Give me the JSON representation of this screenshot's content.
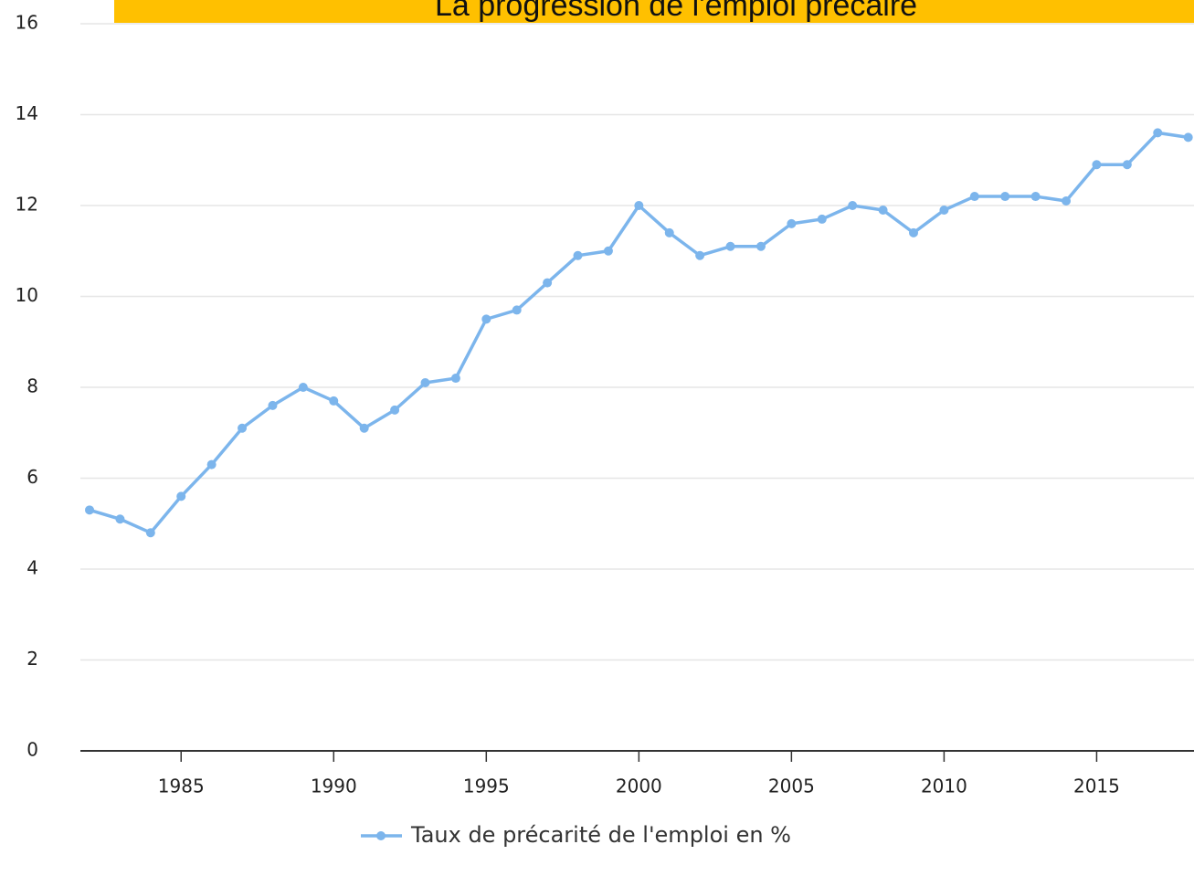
{
  "chart_data": {
    "type": "line",
    "title": "La progression de l'emploi précaire",
    "x": [
      1982,
      1983,
      1984,
      1985,
      1986,
      1987,
      1988,
      1989,
      1990,
      1991,
      1992,
      1993,
      1994,
      1995,
      1996,
      1997,
      1998,
      1999,
      2000,
      2001,
      2002,
      2003,
      2004,
      2005,
      2006,
      2007,
      2008,
      2009,
      2010,
      2011,
      2012,
      2013,
      2014,
      2015,
      2016,
      2017,
      2018
    ],
    "series": [
      {
        "name": "Taux de précarité de l'emploi en %",
        "color": "#7cb5ec",
        "values": [
          5.3,
          5.1,
          4.8,
          5.6,
          6.3,
          7.1,
          7.6,
          8.0,
          7.7,
          7.1,
          7.5,
          8.1,
          8.2,
          9.5,
          9.7,
          10.3,
          10.9,
          11.0,
          12.0,
          11.4,
          10.9,
          11.1,
          11.1,
          11.6,
          11.7,
          12.0,
          11.9,
          11.4,
          11.9,
          12.2,
          12.2,
          12.2,
          12.1,
          12.9,
          12.9,
          13.6,
          13.5
        ]
      }
    ],
    "xlim": [
      1981.7,
      2018.1
    ],
    "xticks": [
      1985,
      1990,
      1995,
      2000,
      2005,
      2010,
      2015
    ],
    "ylim": [
      0,
      16
    ],
    "yticks": [
      0,
      2,
      4,
      6,
      8,
      10,
      12,
      14,
      16
    ],
    "grid": true
  }
}
